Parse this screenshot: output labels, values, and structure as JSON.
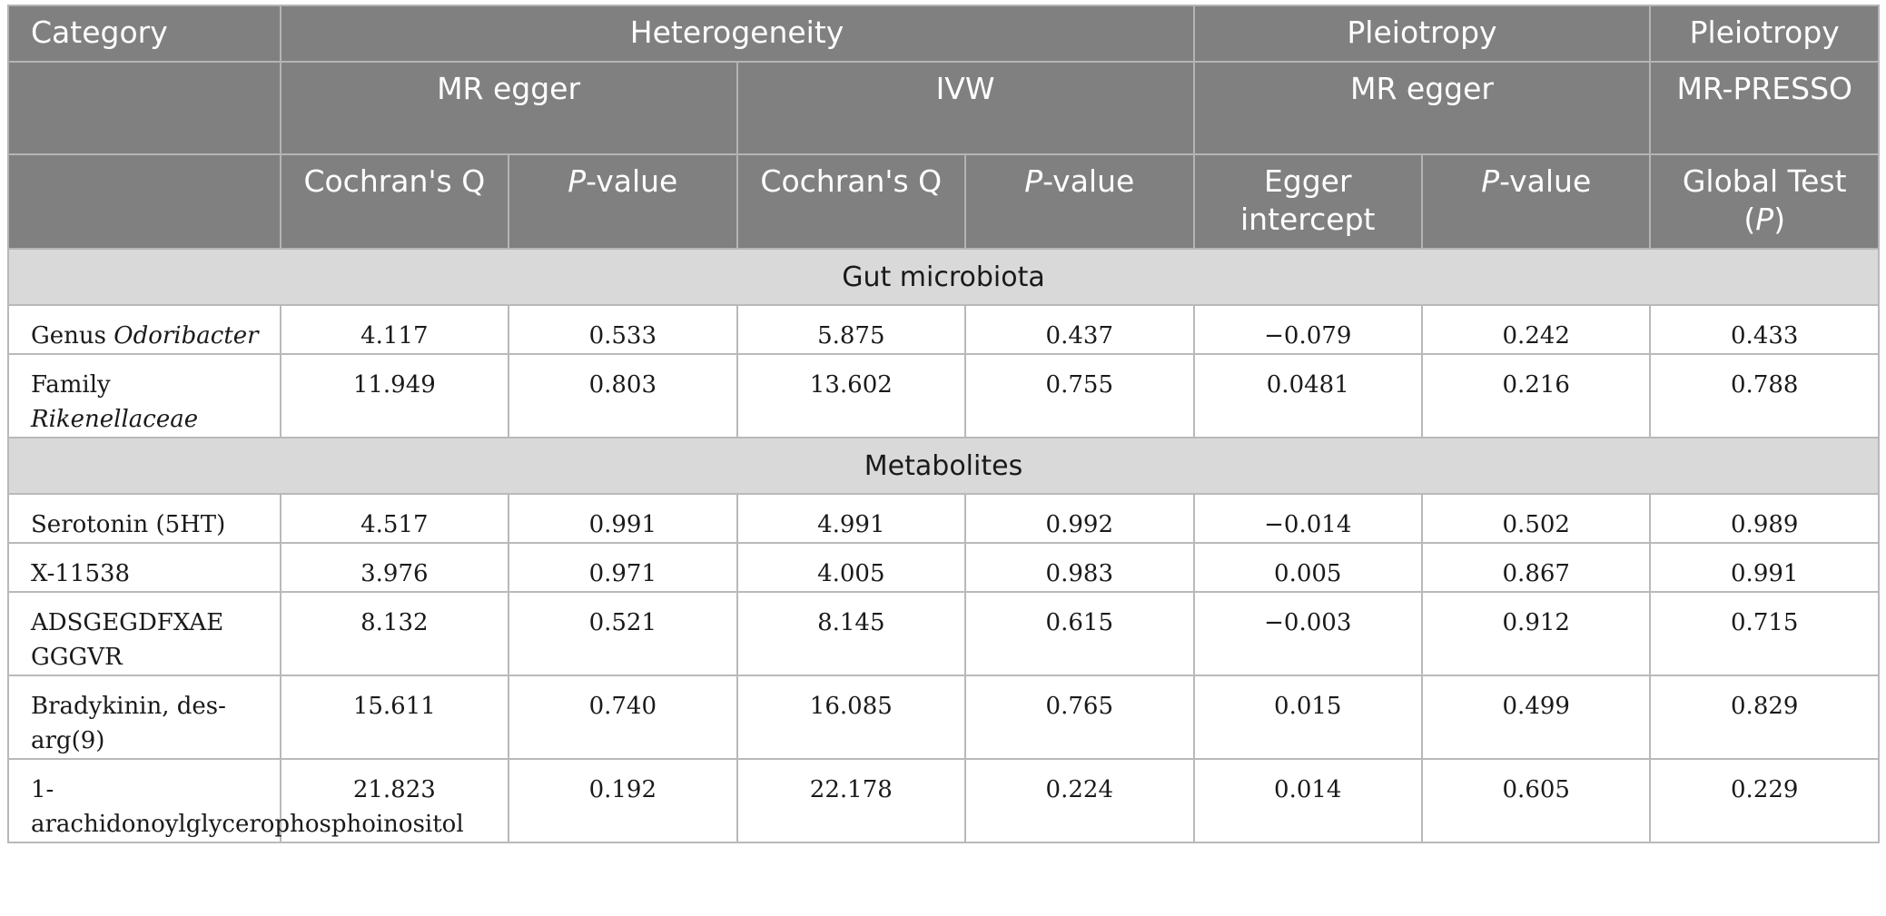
{
  "header": {
    "category": "Category",
    "heterogeneity": "Heterogeneity",
    "pleiotropy_egger_group": "Pleiotropy",
    "pleiotropy_presso_group": "Pleiotropy",
    "mr_egger_het": "MR egger",
    "ivw": "IVW",
    "mr_egger_pleio": "MR egger",
    "mr_presso": "MR-PRESSO",
    "cochrans_q_1": "Cochran's Q",
    "p_prefix_1": "P",
    "p_suffix_1": "-value",
    "cochrans_q_2": "Cochran's Q",
    "p_prefix_2": "P",
    "p_suffix_2": "-value",
    "egger_intercept": "Egger intercept",
    "p_prefix_3": "P",
    "p_suffix_3": "-value",
    "global_test": "Global Test",
    "global_p_open": "(",
    "global_p": "P",
    "global_p_close": ")"
  },
  "sections": [
    {
      "title": "Gut microbiota",
      "rows": [
        {
          "prefix": "Genus ",
          "italic": "Odoribacter",
          "values": [
            "4.117",
            "0.533",
            "5.875",
            "0.437",
            "−0.079",
            "0.242",
            "0.433"
          ]
        },
        {
          "prefix": "Family ",
          "italic": "Rikenellaceae",
          "values": [
            "11.949",
            "0.803",
            "13.602",
            "0.755",
            "0.0481",
            "0.216",
            "0.788"
          ]
        }
      ]
    },
    {
      "title": "Metabolites",
      "rows": [
        {
          "prefix": "Serotonin (5HT)",
          "italic": "",
          "values": [
            "4.517",
            "0.991",
            "4.991",
            "0.992",
            "−0.014",
            "0.502",
            "0.989"
          ]
        },
        {
          "prefix": "X-11538",
          "italic": "",
          "values": [
            "3.976",
            "0.971",
            "4.005",
            "0.983",
            "0.005",
            "0.867",
            "0.991"
          ]
        },
        {
          "prefix": "ADSGEGDFXAE GGGVR",
          "italic": "",
          "values": [
            "8.132",
            "0.521",
            "8.145",
            "0.615",
            "−0.003",
            "0.912",
            "0.715"
          ]
        },
        {
          "prefix": "Bradykinin, des-arg(9)",
          "italic": "",
          "values": [
            "15.611",
            "0.740",
            "16.085",
            "0.765",
            "0.015",
            "0.499",
            "0.829"
          ]
        },
        {
          "prefix": "1-arachidonoylglycerophosphoinositol",
          "italic": "",
          "values": [
            "21.823",
            "0.192",
            "22.178",
            "0.224",
            "0.014",
            "0.605",
            "0.229"
          ]
        }
      ]
    }
  ]
}
